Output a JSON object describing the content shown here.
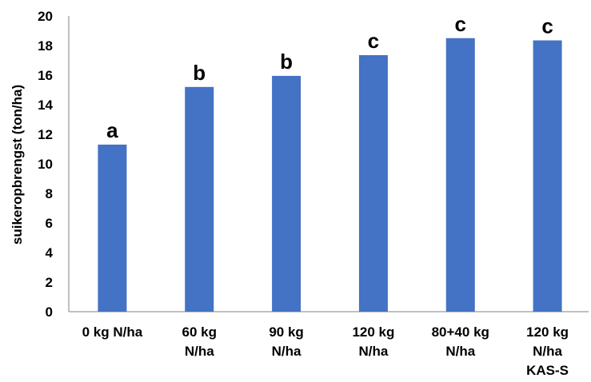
{
  "chart_data": {
    "type": "bar",
    "categories": [
      [
        "0 kg N/ha"
      ],
      [
        "60 kg",
        "N/ha"
      ],
      [
        "90 kg",
        "N/ha"
      ],
      [
        "120 kg",
        "N/ha"
      ],
      [
        "80+40 kg",
        "N/ha"
      ],
      [
        "120 kg",
        "N/ha",
        "KAS-S"
      ]
    ],
    "values": [
      11.3,
      15.2,
      15.95,
      17.35,
      18.5,
      18.35
    ],
    "data_labels": [
      "a",
      "b",
      "b",
      "c",
      "c",
      "c"
    ],
    "ylabel": "suikeropbrengst (ton/ha)",
    "xlabel": "",
    "title": "",
    "ylim": [
      0,
      20
    ],
    "yticks": [
      0,
      2,
      4,
      6,
      8,
      10,
      12,
      14,
      16,
      18,
      20
    ],
    "grid": false,
    "legend": "none",
    "bar_color": "#4472C4",
    "axis_color": "#808080"
  }
}
